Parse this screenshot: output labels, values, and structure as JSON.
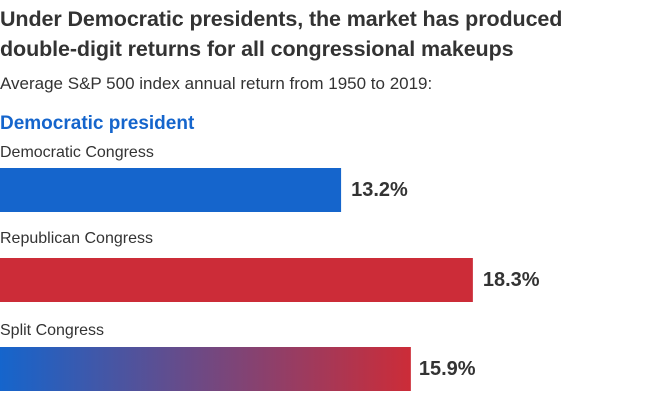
{
  "chart_data": {
    "type": "bar",
    "orientation": "horizontal",
    "title": "Under Democratic presidents, the market has produced double-digit returns for all congressional makeups",
    "subtitle": "Average S&P 500 index annual return from 1950 to 2019:",
    "group_label": "Democratic president",
    "categories": [
      "Democratic Congress",
      "Republican Congress",
      "Split Congress"
    ],
    "values": [
      13.2,
      18.3,
      15.9
    ],
    "value_labels": [
      "13.2%",
      "18.3%",
      "15.9%"
    ],
    "unit": "%",
    "xlabel": "",
    "ylabel": "",
    "xlim": [
      0,
      25
    ],
    "grid": false,
    "legend": "none",
    "bar_fills": [
      "democratic",
      "republican",
      "split-gradient"
    ]
  },
  "colors": {
    "democratic": "#1565cc",
    "republican": "#cc2c38",
    "split_start": "#1565cc",
    "split_end": "#cc2c38",
    "text": "#333333",
    "group_label": "#1565cc"
  }
}
